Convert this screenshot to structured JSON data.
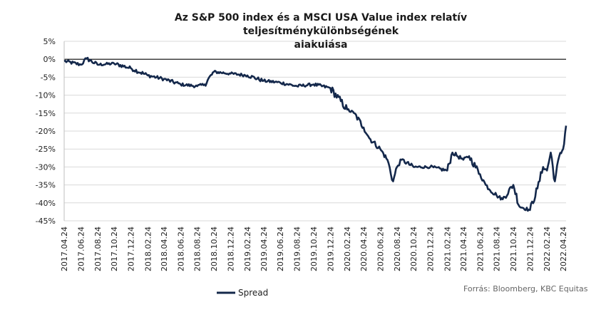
{
  "chart_data": {
    "type": "line",
    "title_line1": "Az S&P 500 index és a MSCI USA Value index relatív teljesítménykülönbségének",
    "title_line2": "alakulása",
    "xlabel": "",
    "ylabel": "",
    "ylim": [
      -45,
      5
    ],
    "yticks": [
      5,
      0,
      -5,
      -10,
      -15,
      -20,
      -25,
      -30,
      -35,
      -40,
      -45
    ],
    "ytick_labels": [
      "5%",
      "0%",
      "-5%",
      "-10%",
      "-15%",
      "-20%",
      "-25%",
      "-30%",
      "-35%",
      "-40%",
      "-45%"
    ],
    "xtick_labels": [
      "2017.04.24",
      "2017.06.24",
      "2017.08.24",
      "2017.10.24",
      "2017.12.24",
      "2018.02.24",
      "2018.04.24",
      "2018.06.24",
      "2018.08.24",
      "2018.10.24",
      "2018.12.24",
      "2019.02.24",
      "2019.04.24",
      "2019.06.24",
      "2019.08.24",
      "2019.10.24",
      "2019.12.24",
      "2020.02.24",
      "2020.04.24",
      "2020.06.24",
      "2020.08.24",
      "2020.10.24",
      "2020.12.24",
      "2021.02.24",
      "2021.04.24",
      "2021.06.24",
      "2021.08.24",
      "2021.10.24",
      "2021.12.24",
      "2022.02.24",
      "2022.04.24"
    ],
    "grid": "horizontal",
    "legend": "bottom-left",
    "series": [
      {
        "name": "Spread",
        "color": "#14284b",
        "x": [
          "2017.04.24",
          "2017.06.24",
          "2017.07.15",
          "2017.08.24",
          "2017.10.24",
          "2017.12.24",
          "2018.02.24",
          "2018.04.24",
          "2018.06.24",
          "2018.08.24",
          "2018.09.20",
          "2018.10.24",
          "2018.12.24",
          "2019.02.24",
          "2019.04.24",
          "2019.06.24",
          "2019.08.24",
          "2019.10.24",
          "2019.12.24",
          "2020.02.24",
          "2020.03.20",
          "2020.04.24",
          "2020.05.15",
          "2020.06.24",
          "2020.07.20",
          "2020.08.10",
          "2020.08.24",
          "2020.09.10",
          "2020.10.24",
          "2020.12.24",
          "2021.02.24",
          "2021.03.15",
          "2021.04.24",
          "2021.05.15",
          "2021.06.24",
          "2021.07.15",
          "2021.08.24",
          "2021.09.15",
          "2021.10.24",
          "2021.11.15",
          "2021.12.24",
          "2022.01.20",
          "2022.02.10",
          "2022.02.24",
          "2022.03.10",
          "2022.03.25",
          "2022.04.10",
          "2022.04.24",
          "2022.05.05"
        ],
        "values": [
          -0.5,
          -1.5,
          0.2,
          -1.5,
          -1.2,
          -2.5,
          -4.5,
          -5.5,
          -7,
          -7.5,
          -7,
          -3.5,
          -4,
          -4.5,
          -6,
          -6.5,
          -7.5,
          -7,
          -8,
          -14,
          -15,
          -19,
          -22,
          -25,
          -28,
          -34,
          -30,
          -28,
          -30,
          -30,
          -31,
          -26,
          -28,
          -27,
          -32,
          -35,
          -38,
          -39,
          -35,
          -41,
          -42,
          -36,
          -30,
          -31,
          -26,
          -34,
          -27,
          -25,
          -18.5
        ]
      }
    ],
    "source": "Forrás: Bloomberg, KBC Equitas"
  }
}
